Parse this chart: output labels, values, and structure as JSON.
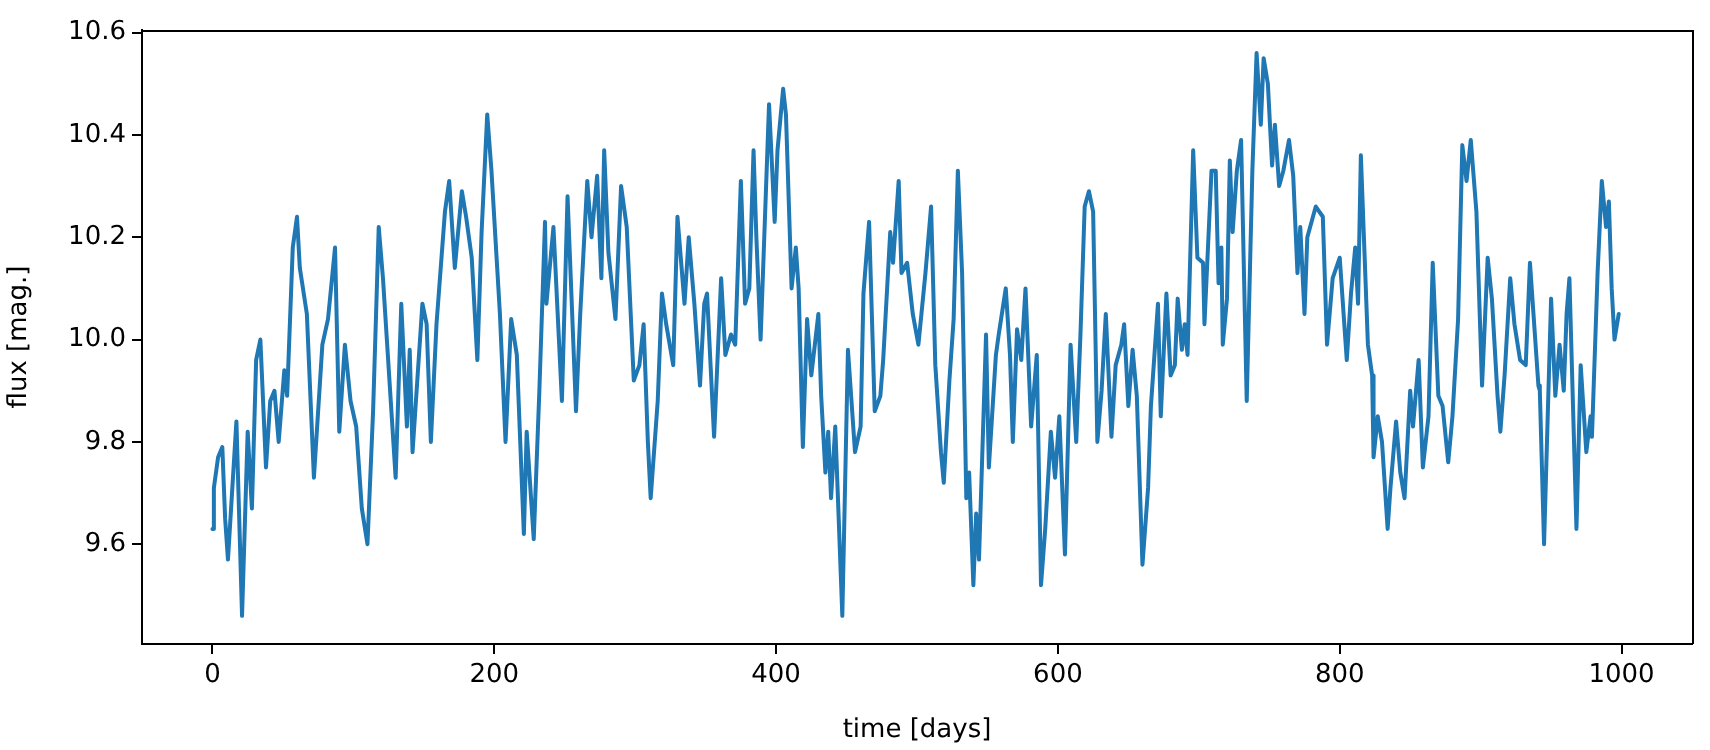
{
  "chart_data": {
    "type": "line",
    "xlabel": "time [days]",
    "ylabel": "flux [mag.]",
    "xlim": [
      -50,
      1050
    ],
    "xticks": [
      0,
      200,
      400,
      600,
      800,
      1000
    ],
    "ylim": [
      9.405,
      10.605
    ],
    "yticks": [
      9.6,
      9.8,
      {
        "value": 10,
        "label": "10.0"
      },
      10.2,
      10.4,
      10.6
    ],
    "grid": false,
    "legend": false,
    "marker": "none",
    "line_style": "solid",
    "x": [
      0,
      1,
      4,
      7,
      9,
      11,
      17,
      21,
      25,
      28,
      31,
      34,
      38,
      41,
      44,
      47,
      51,
      53,
      57,
      60,
      62,
      67,
      72,
      78,
      82,
      87,
      90,
      94,
      98,
      102,
      106,
      110,
      114,
      118,
      121,
      130,
      134,
      138,
      140,
      142,
      149,
      152,
      155,
      159,
      165,
      168,
      172,
      177,
      180,
      184,
      188,
      191,
      195,
      198,
      204,
      208,
      212,
      216,
      221,
      223,
      228,
      232,
      236,
      237,
      242,
      248,
      252,
      258,
      261,
      266,
      269,
      273,
      276,
      278,
      281,
      286,
      290,
      294,
      299,
      303,
      306,
      309,
      311,
      316,
      319,
      322,
      327,
      330,
      335,
      338,
      342,
      346,
      349,
      351,
      356,
      361,
      364,
      368,
      371,
      375,
      378,
      381,
      384,
      386,
      389,
      395,
      399,
      401,
      405,
      407,
      411,
      414,
      416,
      419,
      422,
      425,
      430,
      432,
      435,
      437,
      439,
      442,
      447,
      451,
      456,
      460,
      462,
      466,
      470,
      474,
      476,
      481,
      483,
      487,
      489,
      493,
      497,
      501,
      506,
      510,
      513,
      517,
      519,
      523,
      526,
      529,
      532,
      535,
      537,
      540,
      542,
      544,
      549,
      551,
      556,
      558,
      563,
      566,
      568,
      571,
      574,
      577,
      581,
      585,
      588,
      591,
      595,
      598,
      601,
      605,
      609,
      613,
      616,
      619,
      622,
      625,
      628,
      631,
      634,
      638,
      641,
      645,
      647,
      650,
      653,
      656,
      660,
      664,
      666,
      671,
      673,
      677,
      680,
      683,
      685,
      688,
      690,
      692,
      696,
      699,
      703,
      704,
      709,
      712,
      714,
      716,
      717,
      720,
      722,
      724,
      727,
      730,
      734,
      738,
      741,
      744,
      746,
      749,
      752,
      754,
      757,
      760,
      764,
      767,
      770,
      772,
      775,
      777,
      783,
      788,
      791,
      795,
      800,
      804,
      805,
      808,
      811,
      813,
      815,
      820,
      823,
      824,
      827,
      830,
      834,
      836,
      840,
      843,
      846,
      850,
      852,
      856,
      859,
      863,
      866,
      870,
      873,
      877,
      880,
      884,
      887,
      890,
      893,
      897,
      901,
      905,
      908,
      912,
      914,
      917,
      921,
      924,
      928,
      932,
      935,
      941,
      942,
      945,
      950,
      953,
      956,
      959,
      961,
      963,
      968,
      971,
      975,
      978,
      979,
      983,
      986,
      989,
      991,
      993,
      995,
      998
    ],
    "series": [
      {
        "color": "#1f77b4",
        "values": [
          9.63,
          9.71,
          9.77,
          9.79,
          9.65,
          9.57,
          9.84,
          9.46,
          9.82,
          9.67,
          9.96,
          10.0,
          9.75,
          9.88,
          9.9,
          9.8,
          9.94,
          9.89,
          10.18,
          10.24,
          10.14,
          10.05,
          9.73,
          9.99,
          10.04,
          10.18,
          9.82,
          9.99,
          9.88,
          9.83,
          9.67,
          9.6,
          9.86,
          10.22,
          10.12,
          9.73,
          10.07,
          9.83,
          9.98,
          9.78,
          10.07,
          10.03,
          9.8,
          10.03,
          10.25,
          10.31,
          10.14,
          10.29,
          10.24,
          10.16,
          9.96,
          10.21,
          10.44,
          10.33,
          10.05,
          9.8,
          10.04,
          9.97,
          9.62,
          9.82,
          9.61,
          9.9,
          10.23,
          10.07,
          10.22,
          9.88,
          10.28,
          9.86,
          10.05,
          10.31,
          10.2,
          10.32,
          10.12,
          10.37,
          10.17,
          10.04,
          10.3,
          10.22,
          9.92,
          9.95,
          10.03,
          9.8,
          9.69,
          9.88,
          10.09,
          10.03,
          9.95,
          10.24,
          10.07,
          10.2,
          10.07,
          9.91,
          10.07,
          10.09,
          9.81,
          10.12,
          9.97,
          10.01,
          9.99,
          10.31,
          10.07,
          10.1,
          10.37,
          10.2,
          10.0,
          10.46,
          10.23,
          10.37,
          10.49,
          10.44,
          10.1,
          10.18,
          10.1,
          9.79,
          10.04,
          9.93,
          10.05,
          9.89,
          9.74,
          9.82,
          9.69,
          9.83,
          9.46,
          9.98,
          9.78,
          9.83,
          10.09,
          10.23,
          9.86,
          9.89,
          9.96,
          10.21,
          10.15,
          10.31,
          10.13,
          10.15,
          10.05,
          9.99,
          10.13,
          10.26,
          9.95,
          9.78,
          9.72,
          9.92,
          10.04,
          10.33,
          10.13,
          9.69,
          9.74,
          9.52,
          9.66,
          9.57,
          10.01,
          9.75,
          9.97,
          10.01,
          10.1,
          9.97,
          9.8,
          10.02,
          9.96,
          10.1,
          9.83,
          9.97,
          9.52,
          9.63,
          9.82,
          9.73,
          9.85,
          9.58,
          9.99,
          9.8,
          10.01,
          10.26,
          10.29,
          10.25,
          9.8,
          9.9,
          10.05,
          9.81,
          9.95,
          9.99,
          10.03,
          9.87,
          9.98,
          9.89,
          9.56,
          9.71,
          9.87,
          10.07,
          9.85,
          10.09,
          9.93,
          9.95,
          10.08,
          9.98,
          10.03,
          9.97,
          10.37,
          10.16,
          10.15,
          10.03,
          10.33,
          10.33,
          10.11,
          10.18,
          9.99,
          10.08,
          10.35,
          10.21,
          10.33,
          10.39,
          9.88,
          10.33,
          10.56,
          10.42,
          10.55,
          10.5,
          10.34,
          10.42,
          10.3,
          10.33,
          10.39,
          10.32,
          10.13,
          10.22,
          10.05,
          10.2,
          10.26,
          10.24,
          9.99,
          10.12,
          10.16,
          10.0,
          9.96,
          10.09,
          10.18,
          10.07,
          10.36,
          9.99,
          9.93,
          9.77,
          9.85,
          9.8,
          9.63,
          9.71,
          9.84,
          9.74,
          9.69,
          9.9,
          9.83,
          9.96,
          9.75,
          9.85,
          10.15,
          9.89,
          9.87,
          9.76,
          9.85,
          10.04,
          10.38,
          10.31,
          10.39,
          10.25,
          9.91,
          10.16,
          10.08,
          9.89,
          9.82,
          9.93,
          10.12,
          10.03,
          9.96,
          9.95,
          10.15,
          9.91,
          9.9,
          9.6,
          10.08,
          9.89,
          9.99,
          9.9,
          10.05,
          10.12,
          9.63,
          9.95,
          9.78,
          9.85,
          9.81,
          10.13,
          10.31,
          10.22,
          10.27,
          10.1,
          10.0,
          10.05
        ]
      }
    ]
  }
}
